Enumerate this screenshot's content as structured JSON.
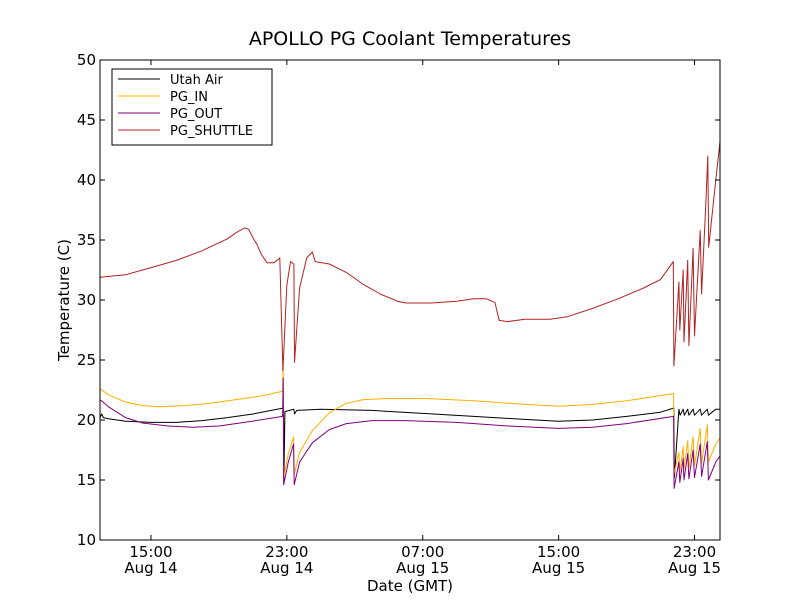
{
  "chart_data": {
    "type": "line",
    "title": "APOLLO PG Coolant Temperatures",
    "xlabel": "Date (GMT)",
    "ylabel": "Temperature (C)",
    "ylim": [
      10,
      50
    ],
    "xlim": [
      "2014-08-14T12:00",
      "2014-08-16T00:30"
    ],
    "y_ticks": [
      10,
      15,
      20,
      25,
      30,
      35,
      40,
      45,
      50
    ],
    "x_ticks": [
      {
        "x": "2014-08-14T15:00",
        "line1": "15:00",
        "line2": "Aug 14"
      },
      {
        "x": "2014-08-14T23:00",
        "line1": "23:00",
        "line2": "Aug 14"
      },
      {
        "x": "2014-08-15T07:00",
        "line1": "07:00",
        "line2": "Aug 15"
      },
      {
        "x": "2014-08-15T15:00",
        "line1": "15:00",
        "line2": "Aug 15"
      },
      {
        "x": "2014-08-15T23:00",
        "line1": "23:00",
        "line2": "Aug 15"
      }
    ],
    "grid": false,
    "legend_position": "top-left",
    "series": [
      {
        "name": "Utah Air",
        "color": "#000000",
        "points": [
          [
            "2014-08-14T12:00",
            20.2
          ],
          [
            "2014-08-14T12:06",
            20.5
          ],
          [
            "2014-08-14T12:12",
            20.2
          ],
          [
            "2014-08-14T12:30",
            20.1
          ],
          [
            "2014-08-14T13:30",
            19.9
          ],
          [
            "2014-08-14T15:00",
            19.8
          ],
          [
            "2014-08-14T16:30",
            19.8
          ],
          [
            "2014-08-14T18:00",
            19.95
          ],
          [
            "2014-08-14T19:30",
            20.2
          ],
          [
            "2014-08-14T21:00",
            20.5
          ],
          [
            "2014-08-14T22:48",
            21.0
          ],
          [
            "2014-08-14T22:50",
            15.0
          ],
          [
            "2014-08-14T22:53",
            20.7
          ],
          [
            "2014-08-14T23:10",
            20.8
          ],
          [
            "2014-08-14T23:25",
            20.9
          ],
          [
            "2014-08-14T23:27",
            20.5
          ],
          [
            "2014-08-14T23:35",
            20.8
          ],
          [
            "2014-08-15T01:00",
            20.9
          ],
          [
            "2014-08-15T04:00",
            20.8
          ],
          [
            "2014-08-15T07:00",
            20.55
          ],
          [
            "2014-08-15T10:00",
            20.3
          ],
          [
            "2014-08-15T13:00",
            20.05
          ],
          [
            "2014-08-15T15:00",
            19.9
          ],
          [
            "2014-08-15T17:00",
            20.0
          ],
          [
            "2014-08-15T19:00",
            20.3
          ],
          [
            "2014-08-15T21:00",
            20.65
          ],
          [
            "2014-08-15T21:47",
            21.0
          ],
          [
            "2014-08-15T21:49",
            15.2
          ],
          [
            "2014-08-15T22:05",
            20.9
          ],
          [
            "2014-08-15T22:09",
            20.4
          ],
          [
            "2014-08-15T22:20",
            20.9
          ],
          [
            "2014-08-15T22:24",
            20.4
          ],
          [
            "2014-08-15T22:36",
            20.9
          ],
          [
            "2014-08-15T22:40",
            20.4
          ],
          [
            "2014-08-15T22:55",
            20.9
          ],
          [
            "2014-08-15T23:00",
            20.4
          ],
          [
            "2014-08-15T23:20",
            20.9
          ],
          [
            "2014-08-15T23:25",
            20.4
          ],
          [
            "2014-08-15T23:45",
            20.9
          ],
          [
            "2014-08-15T23:49",
            20.4
          ],
          [
            "2014-08-16T00:15",
            20.9
          ],
          [
            "2014-08-16T00:30",
            20.9
          ]
        ]
      },
      {
        "name": "PG_IN",
        "color": "#ffb000",
        "points": [
          [
            "2014-08-14T12:00",
            22.6
          ],
          [
            "2014-08-14T12:30",
            22.1
          ],
          [
            "2014-08-14T13:30",
            21.5
          ],
          [
            "2014-08-14T14:30",
            21.2
          ],
          [
            "2014-08-14T15:30",
            21.1
          ],
          [
            "2014-08-14T17:00",
            21.2
          ],
          [
            "2014-08-14T18:30",
            21.4
          ],
          [
            "2014-08-14T20:00",
            21.7
          ],
          [
            "2014-08-14T21:30",
            22.0
          ],
          [
            "2014-08-14T22:45",
            22.4
          ],
          [
            "2014-08-14T22:47",
            24.5
          ],
          [
            "2014-08-14T22:49",
            15.2
          ],
          [
            "2014-08-14T23:05",
            17.2
          ],
          [
            "2014-08-14T23:24",
            18.6
          ],
          [
            "2014-08-14T23:26",
            15.5
          ],
          [
            "2014-08-14T23:45",
            17.3
          ],
          [
            "2014-08-15T00:30",
            19.1
          ],
          [
            "2014-08-15T01:30",
            20.6
          ],
          [
            "2014-08-15T02:30",
            21.4
          ],
          [
            "2014-08-15T03:30",
            21.7
          ],
          [
            "2014-08-15T05:00",
            21.8
          ],
          [
            "2014-08-15T07:00",
            21.8
          ],
          [
            "2014-08-15T10:00",
            21.6
          ],
          [
            "2014-08-15T13:00",
            21.3
          ],
          [
            "2014-08-15T15:00",
            21.15
          ],
          [
            "2014-08-15T17:00",
            21.3
          ],
          [
            "2014-08-15T19:00",
            21.6
          ],
          [
            "2014-08-15T21:46",
            22.2
          ],
          [
            "2014-08-15T21:48",
            15.5
          ],
          [
            "2014-08-15T22:05",
            17.3
          ],
          [
            "2014-08-15T22:08",
            15.6
          ],
          [
            "2014-08-15T22:20",
            17.8
          ],
          [
            "2014-08-15T22:23",
            15.9
          ],
          [
            "2014-08-15T22:36",
            18.3
          ],
          [
            "2014-08-15T22:40",
            16.0
          ],
          [
            "2014-08-15T22:55",
            18.6
          ],
          [
            "2014-08-15T23:00",
            16.2
          ],
          [
            "2014-08-15T23:20",
            19.3
          ],
          [
            "2014-08-15T23:25",
            16.4
          ],
          [
            "2014-08-15T23:45",
            19.6
          ],
          [
            "2014-08-15T23:49",
            16.5
          ],
          [
            "2014-08-16T00:15",
            18.0
          ],
          [
            "2014-08-16T00:30",
            18.5
          ]
        ]
      },
      {
        "name": "PG_OUT",
        "color": "#800080",
        "points": [
          [
            "2014-08-14T12:00",
            21.7
          ],
          [
            "2014-08-14T12:30",
            21.1
          ],
          [
            "2014-08-14T13:30",
            20.2
          ],
          [
            "2014-08-14T14:30",
            19.75
          ],
          [
            "2014-08-14T16:00",
            19.5
          ],
          [
            "2014-08-14T17:30",
            19.4
          ],
          [
            "2014-08-14T19:00",
            19.5
          ],
          [
            "2014-08-14T20:30",
            19.8
          ],
          [
            "2014-08-14T22:45",
            20.3
          ],
          [
            "2014-08-14T22:47",
            23.5
          ],
          [
            "2014-08-14T22:49",
            14.6
          ],
          [
            "2014-08-14T23:05",
            16.5
          ],
          [
            "2014-08-14T23:24",
            18.0
          ],
          [
            "2014-08-14T23:26",
            14.6
          ],
          [
            "2014-08-14T23:45",
            16.5
          ],
          [
            "2014-08-15T00:30",
            18.1
          ],
          [
            "2014-08-15T01:30",
            19.2
          ],
          [
            "2014-08-15T02:30",
            19.7
          ],
          [
            "2014-08-15T04:00",
            19.95
          ],
          [
            "2014-08-15T06:00",
            19.95
          ],
          [
            "2014-08-15T09:00",
            19.8
          ],
          [
            "2014-08-15T12:00",
            19.5
          ],
          [
            "2014-08-15T15:00",
            19.3
          ],
          [
            "2014-08-15T17:00",
            19.4
          ],
          [
            "2014-08-15T19:00",
            19.7
          ],
          [
            "2014-08-15T21:46",
            20.3
          ],
          [
            "2014-08-15T21:48",
            14.3
          ],
          [
            "2014-08-15T22:05",
            16.5
          ],
          [
            "2014-08-15T22:08",
            14.8
          ],
          [
            "2014-08-15T22:20",
            16.8
          ],
          [
            "2014-08-15T22:23",
            15.0
          ],
          [
            "2014-08-15T22:36",
            17.2
          ],
          [
            "2014-08-15T22:40",
            15.1
          ],
          [
            "2014-08-15T22:55",
            17.5
          ],
          [
            "2014-08-15T23:00",
            15.2
          ],
          [
            "2014-08-15T23:20",
            18.0
          ],
          [
            "2014-08-15T23:25",
            15.3
          ],
          [
            "2014-08-15T23:45",
            18.2
          ],
          [
            "2014-08-15T23:49",
            15.0
          ],
          [
            "2014-08-16T00:15",
            16.5
          ],
          [
            "2014-08-16T00:30",
            17.0
          ]
        ]
      },
      {
        "name": "PG_SHUTTLE",
        "color": "#b22222",
        "points": [
          [
            "2014-08-14T12:00",
            31.9
          ],
          [
            "2014-08-14T13:30",
            32.1
          ],
          [
            "2014-08-14T15:00",
            32.7
          ],
          [
            "2014-08-14T16:30",
            33.3
          ],
          [
            "2014-08-14T18:00",
            34.1
          ],
          [
            "2014-08-14T19:30",
            35.1
          ],
          [
            "2014-08-14T20:00",
            35.6
          ],
          [
            "2014-08-14T20:30",
            36.0
          ],
          [
            "2014-08-14T20:45",
            35.9
          ],
          [
            "2014-08-14T21:00",
            35.2
          ],
          [
            "2014-08-14T21:15",
            34.6
          ],
          [
            "2014-08-14T21:30",
            33.8
          ],
          [
            "2014-08-14T21:50",
            33.1
          ],
          [
            "2014-08-14T22:15",
            33.1
          ],
          [
            "2014-08-14T22:35",
            33.5
          ],
          [
            "2014-08-14T22:46",
            24.1
          ],
          [
            "2014-08-14T23:00",
            31.2
          ],
          [
            "2014-08-14T23:13",
            33.2
          ],
          [
            "2014-08-14T23:25",
            33.0
          ],
          [
            "2014-08-14T23:27",
            24.8
          ],
          [
            "2014-08-14T23:45",
            31.0
          ],
          [
            "2014-08-15T00:10",
            33.5
          ],
          [
            "2014-08-15T00:30",
            34.0
          ],
          [
            "2014-08-15T00:40",
            33.2
          ],
          [
            "2014-08-15T01:30",
            33.0
          ],
          [
            "2014-08-15T02:30",
            32.3
          ],
          [
            "2014-08-15T03:30",
            31.3
          ],
          [
            "2014-08-15T04:30",
            30.5
          ],
          [
            "2014-08-15T05:30",
            29.9
          ],
          [
            "2014-08-15T06:00",
            29.75
          ],
          [
            "2014-08-15T07:30",
            29.75
          ],
          [
            "2014-08-15T09:00",
            29.9
          ],
          [
            "2014-08-15T10:00",
            30.1
          ],
          [
            "2014-08-15T10:45",
            30.1
          ],
          [
            "2014-08-15T11:15",
            29.8
          ],
          [
            "2014-08-15T11:30",
            28.3
          ],
          [
            "2014-08-15T12:00",
            28.2
          ],
          [
            "2014-08-15T13:00",
            28.4
          ],
          [
            "2014-08-15T14:30",
            28.4
          ],
          [
            "2014-08-15T15:30",
            28.6
          ],
          [
            "2014-08-15T17:00",
            29.3
          ],
          [
            "2014-08-15T18:30",
            30.1
          ],
          [
            "2014-08-15T20:00",
            31.0
          ],
          [
            "2014-08-15T21:00",
            31.7
          ],
          [
            "2014-08-15T21:45",
            33.2
          ],
          [
            "2014-08-15T21:47",
            24.5
          ],
          [
            "2014-08-15T22:05",
            31.5
          ],
          [
            "2014-08-15T22:08",
            27.5
          ],
          [
            "2014-08-15T22:20",
            32.5
          ],
          [
            "2014-08-15T22:23",
            26.5
          ],
          [
            "2014-08-15T22:36",
            33.3
          ],
          [
            "2014-08-15T22:40",
            26.2
          ],
          [
            "2014-08-15T22:55",
            34.3
          ],
          [
            "2014-08-15T23:00",
            27.0
          ],
          [
            "2014-08-15T23:20",
            35.8
          ],
          [
            "2014-08-15T23:25",
            30.5
          ],
          [
            "2014-08-15T23:40",
            38.0
          ],
          [
            "2014-08-15T23:47",
            42.0
          ],
          [
            "2014-08-15T23:50",
            34.4
          ],
          [
            "2014-08-16T00:15",
            40.0
          ],
          [
            "2014-08-16T00:30",
            43.2
          ]
        ]
      }
    ]
  }
}
